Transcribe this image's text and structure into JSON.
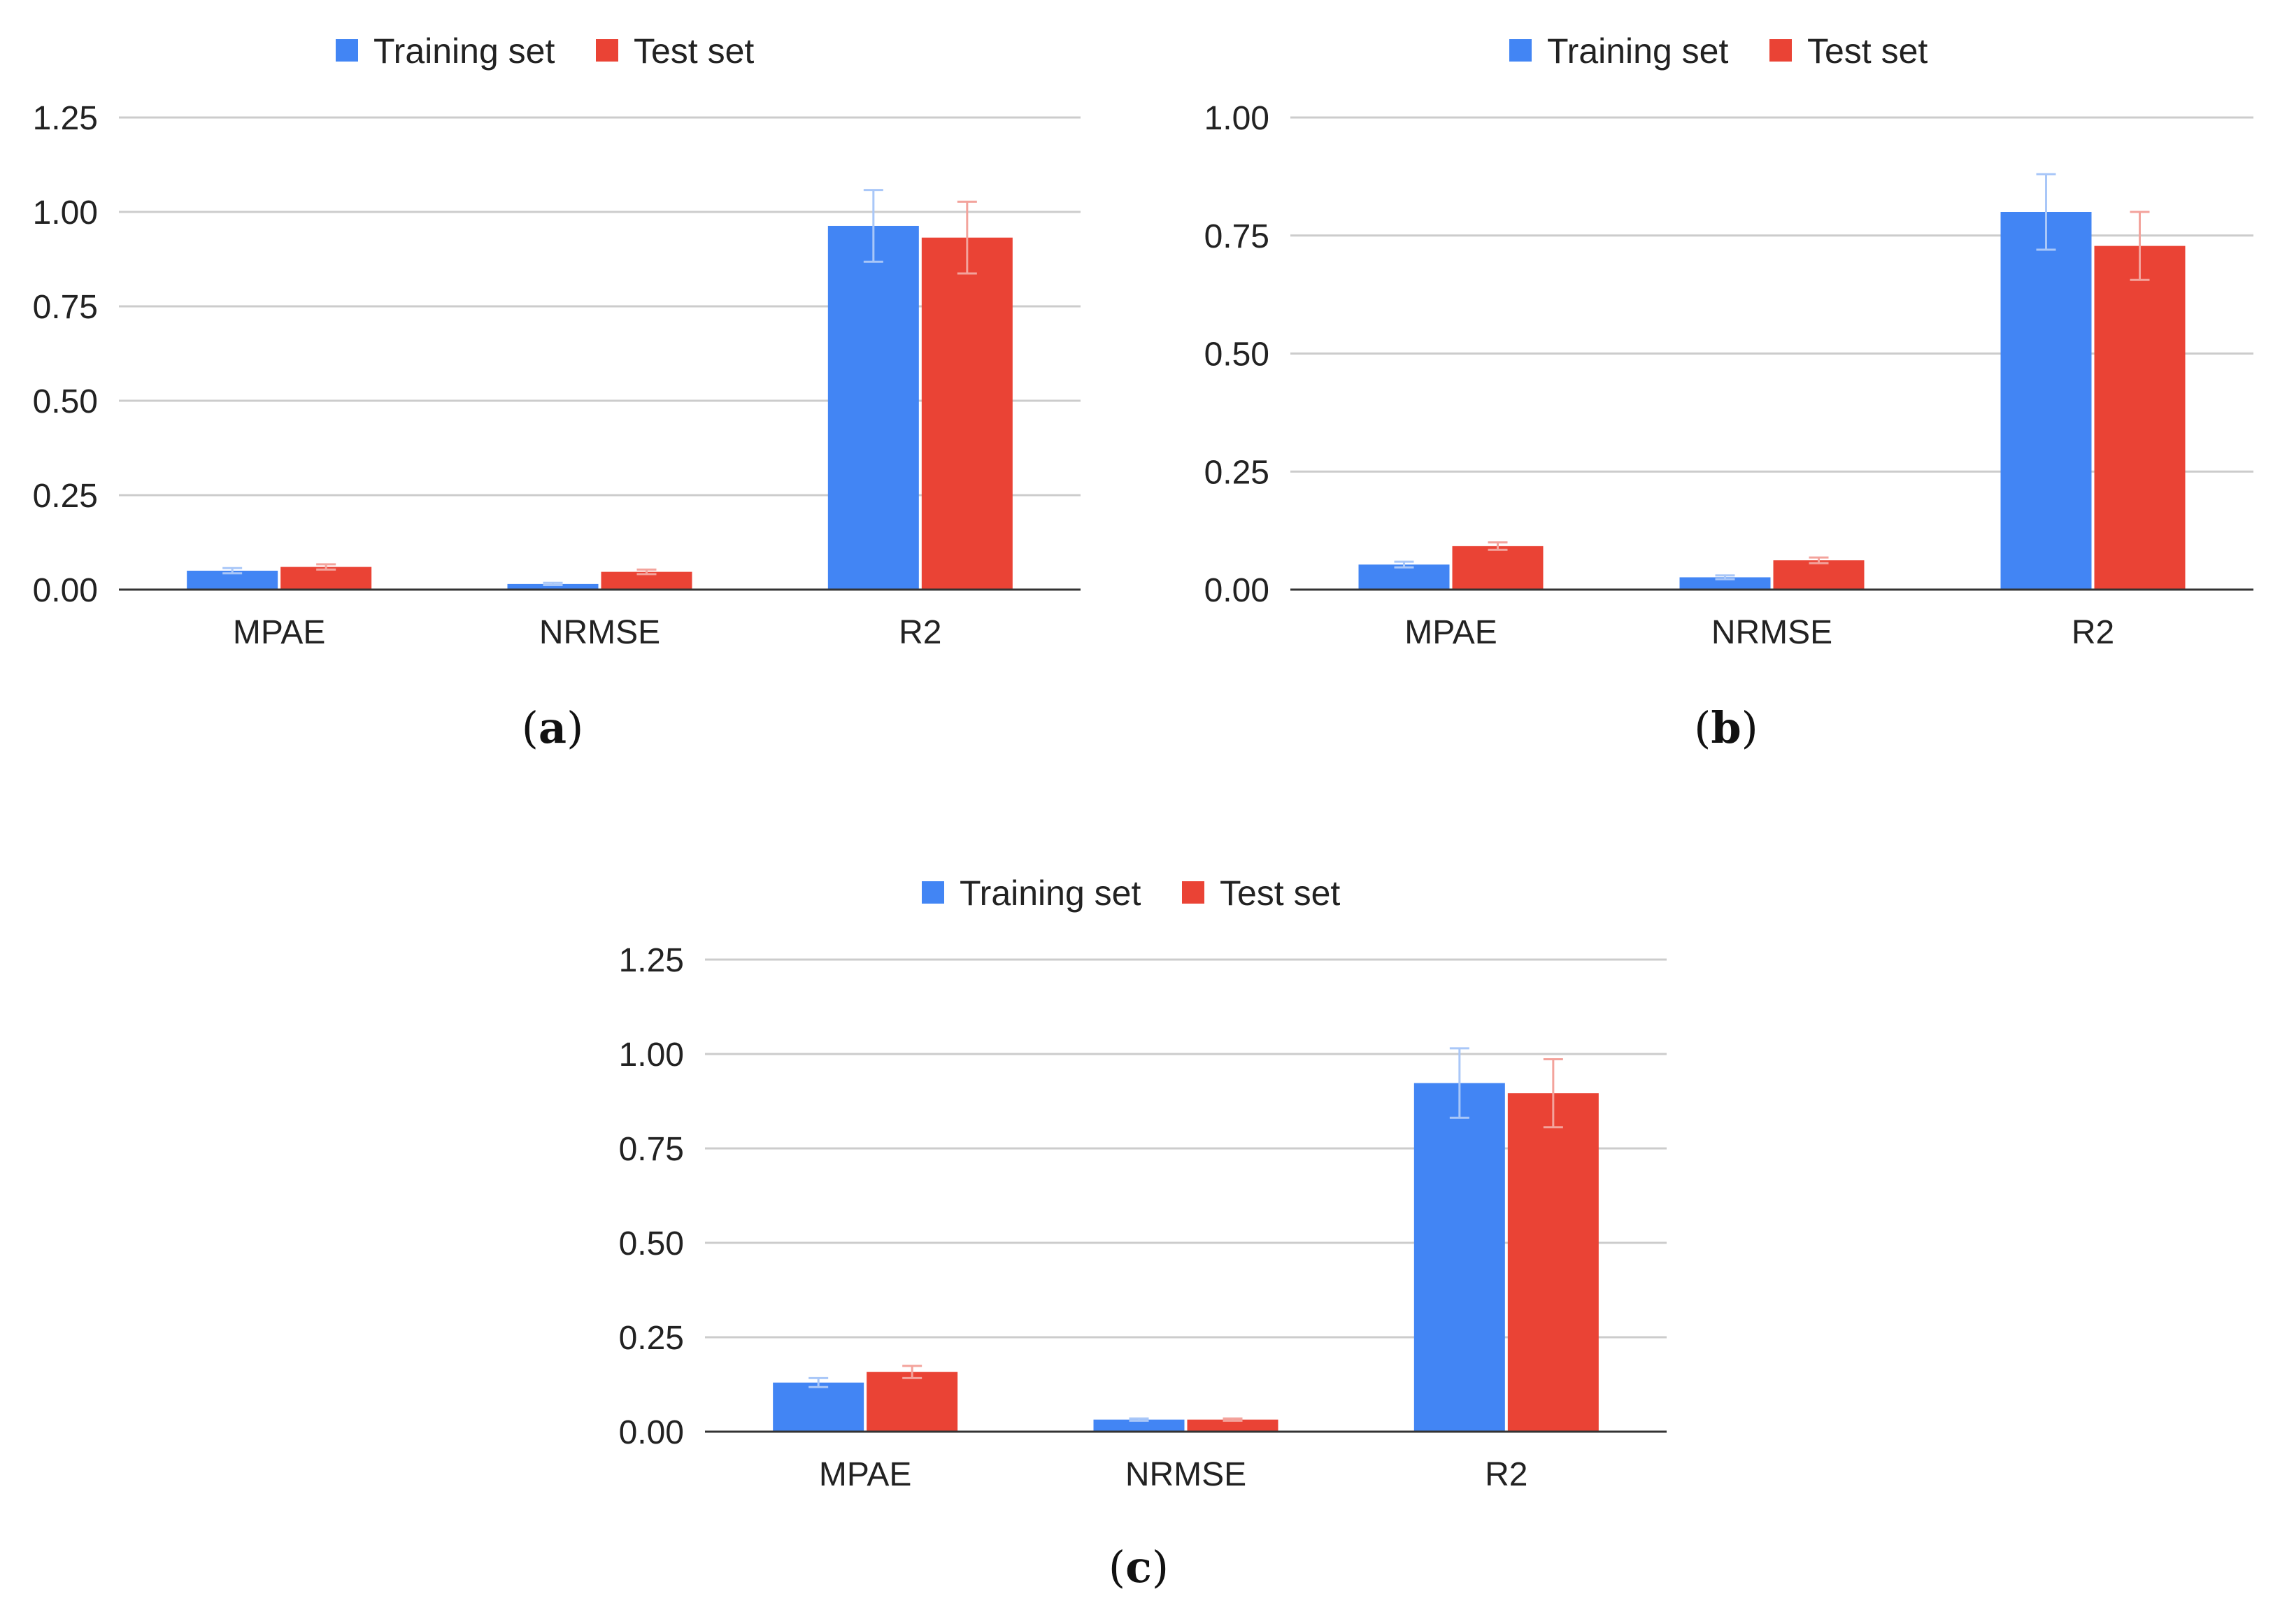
{
  "colors": {
    "training": "#4285F4",
    "test": "#EA4335",
    "training_error": "#A9C7F8",
    "test_error": "#F3A39C",
    "grid": "#CCCCCC",
    "axis": "#333333"
  },
  "chart_data": [
    {
      "type": "bar",
      "panel": "a",
      "caption": "a",
      "categories": [
        "MPAE",
        "NRMSE",
        "R2"
      ],
      "series": [
        {
          "name": "Training set",
          "values": [
            0.05,
            0.015,
            0.963
          ],
          "errors": [
            0.007,
            0.003,
            0.095
          ]
        },
        {
          "name": "Test set",
          "values": [
            0.06,
            0.047,
            0.932
          ],
          "errors": [
            0.007,
            0.006,
            0.095
          ]
        }
      ],
      "yticks": [
        "0.00",
        "0.25",
        "0.50",
        "0.75",
        "1.00",
        "1.25"
      ],
      "ylim": [
        0,
        1.25
      ],
      "legend": "top-center"
    },
    {
      "type": "bar",
      "panel": "b",
      "caption": "b",
      "categories": [
        "MPAE",
        "NRMSE",
        "R2"
      ],
      "series": [
        {
          "name": "Training set",
          "values": [
            0.053,
            0.026,
            0.8
          ],
          "errors": [
            0.006,
            0.004,
            0.08
          ]
        },
        {
          "name": "Test set",
          "values": [
            0.092,
            0.062,
            0.728
          ],
          "errors": [
            0.008,
            0.006,
            0.072
          ]
        }
      ],
      "yticks": [
        "0.00",
        "0.25",
        "0.50",
        "0.75",
        "1.00"
      ],
      "ylim": [
        0,
        1.0
      ],
      "legend": "top-center"
    },
    {
      "type": "bar",
      "panel": "c",
      "caption": "c",
      "categories": [
        "MPAE",
        "NRMSE",
        "R2"
      ],
      "series": [
        {
          "name": "Training set",
          "values": [
            0.13,
            0.032,
            0.923
          ],
          "errors": [
            0.012,
            0.003,
            0.092
          ]
        },
        {
          "name": "Test set",
          "values": [
            0.158,
            0.032,
            0.896
          ],
          "errors": [
            0.016,
            0.003,
            0.09
          ]
        }
      ],
      "yticks": [
        "0.00",
        "0.25",
        "0.50",
        "0.75",
        "1.00",
        "1.25"
      ],
      "ylim": [
        0,
        1.25
      ],
      "legend": "top-center"
    }
  ]
}
